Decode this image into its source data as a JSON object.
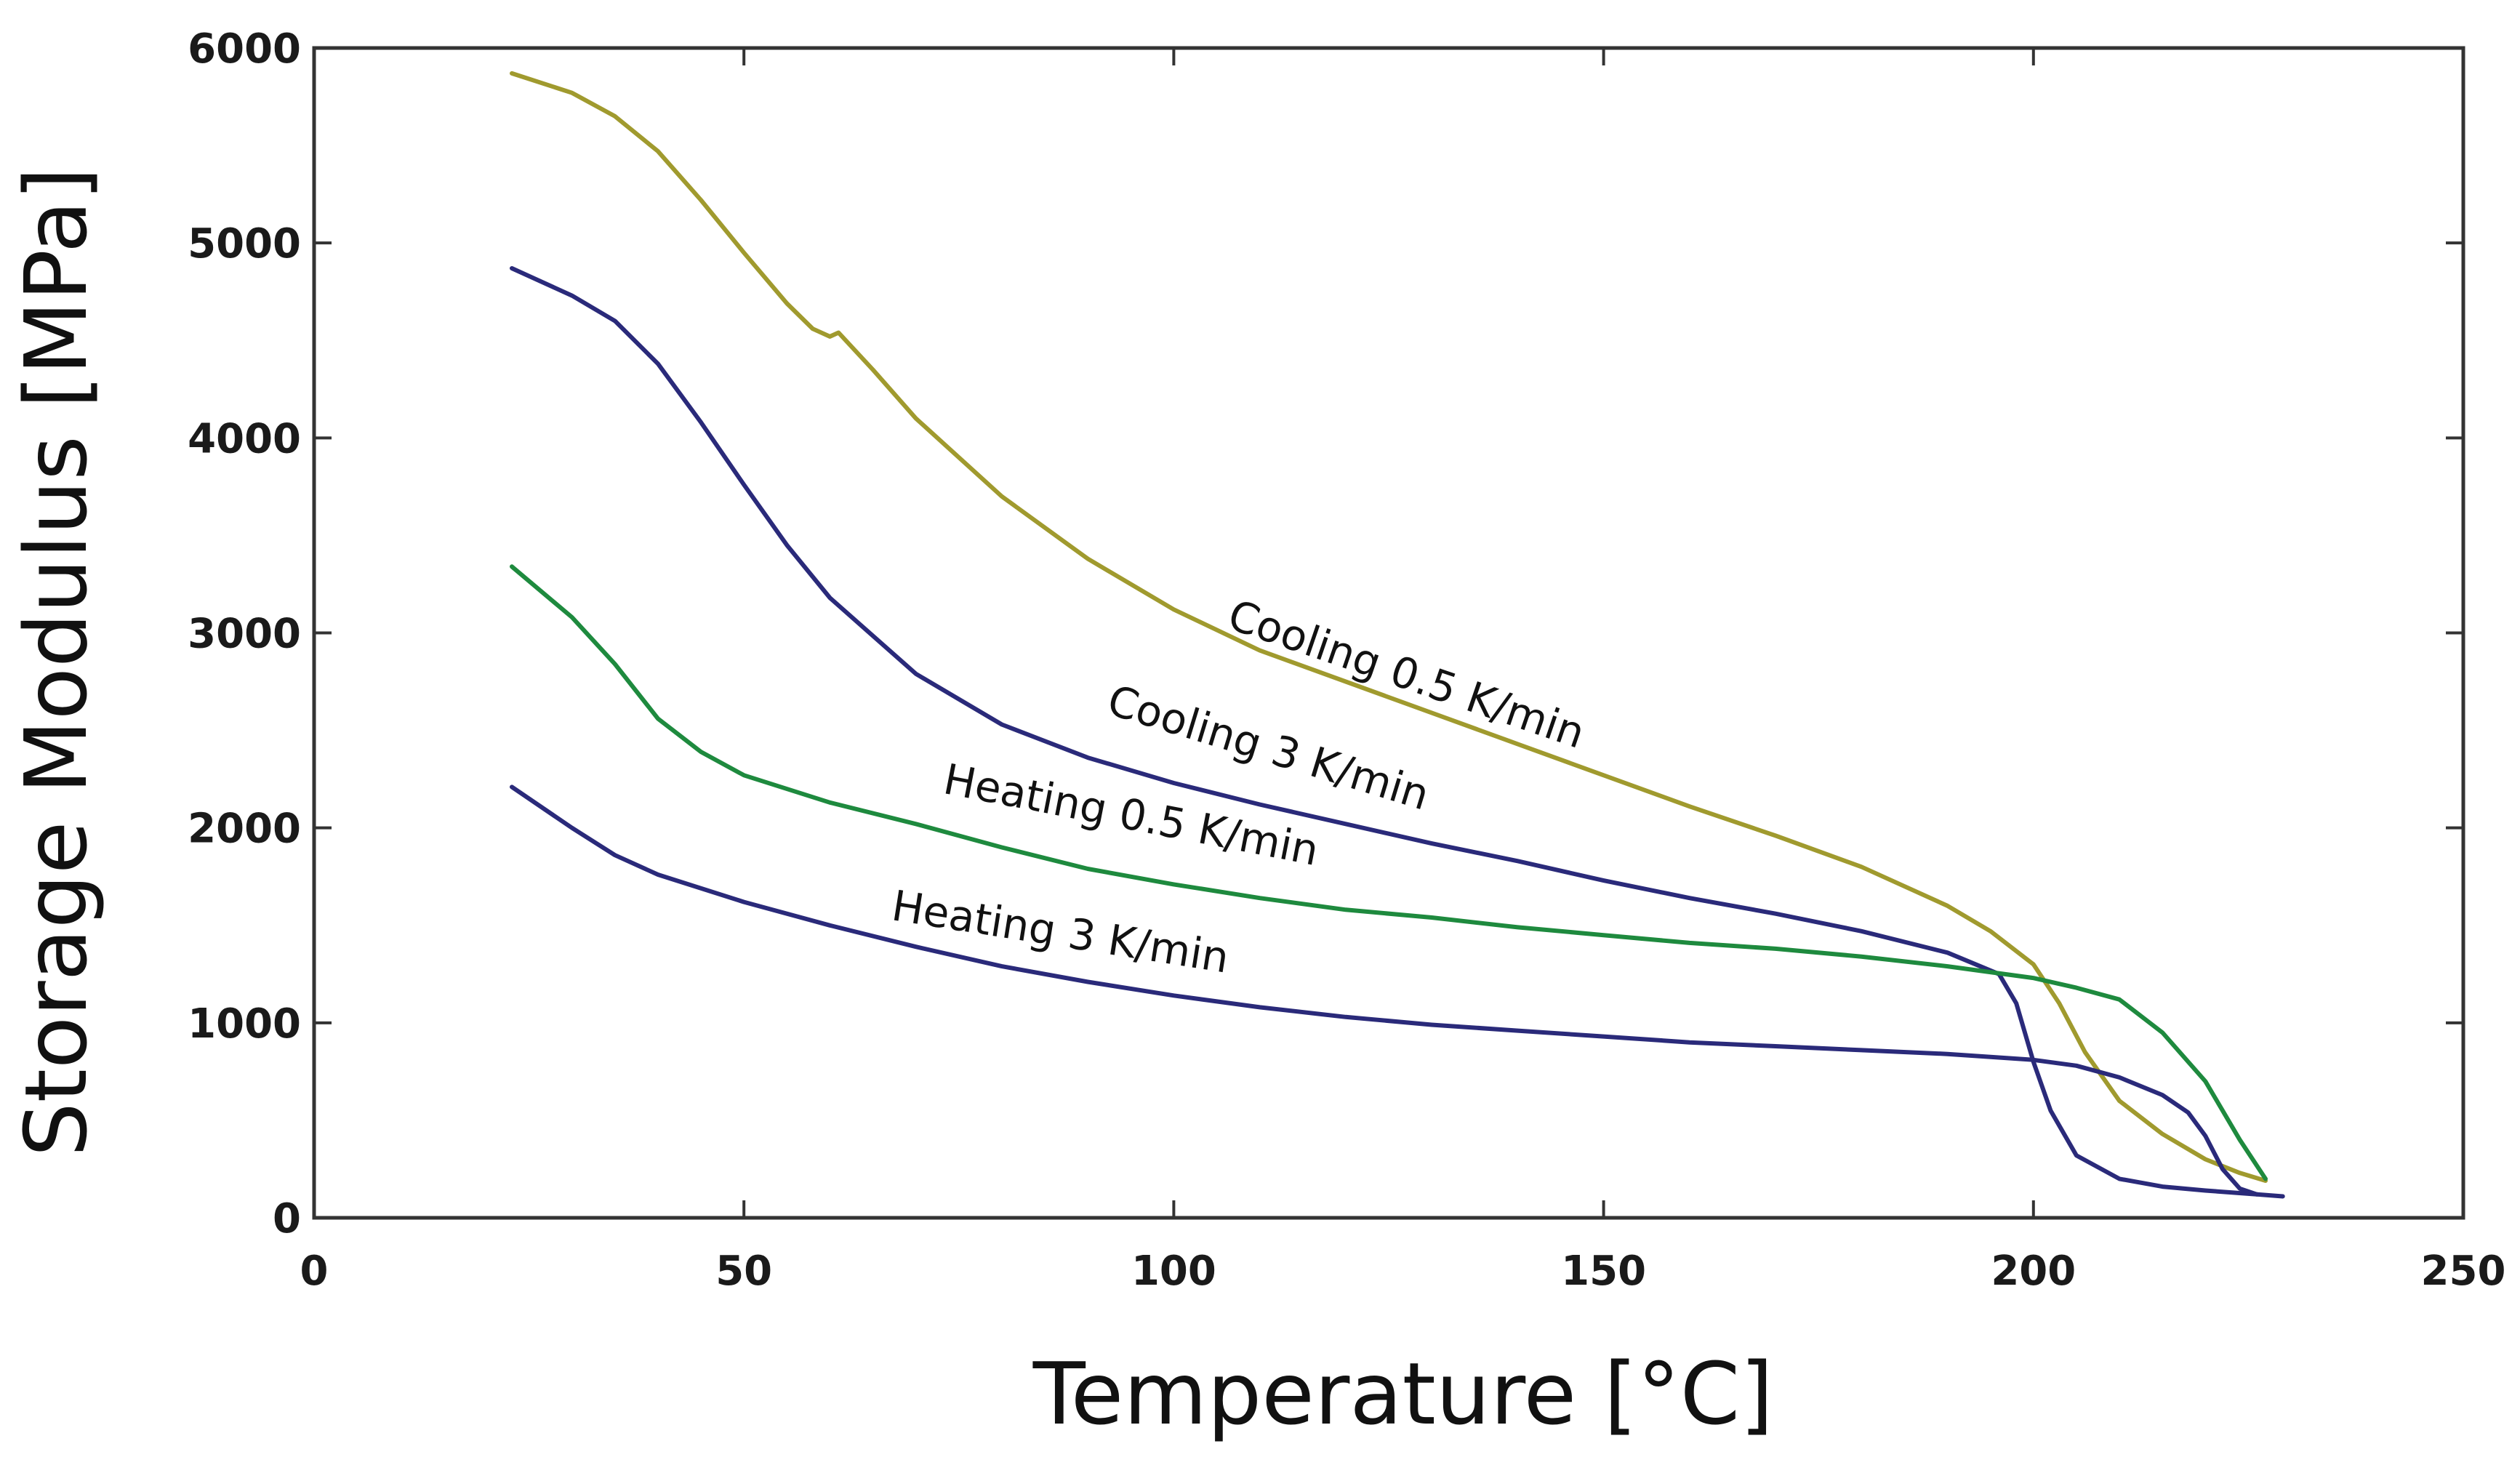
{
  "chart_data": {
    "type": "line",
    "title": "",
    "xlabel": "Temperature [°C]",
    "ylabel": "Storage Modulus [MPa]",
    "xlim": [
      0,
      250
    ],
    "ylim": [
      0,
      6000
    ],
    "grid": false,
    "x_ticks": [
      0,
      50,
      100,
      150,
      200,
      250
    ],
    "y_ticks": [
      0,
      1000,
      2000,
      3000,
      4000,
      5000,
      6000
    ],
    "series": [
      {
        "name": "Cooling 0.5 K/min",
        "color": "#a09a2e",
        "x": [
          23,
          30,
          35,
          40,
          45,
          50,
          55,
          58,
          60,
          61,
          65,
          70,
          80,
          90,
          100,
          110,
          120,
          130,
          140,
          150,
          160,
          170,
          180,
          190,
          195,
          200,
          203,
          206,
          210,
          215,
          220,
          224,
          227
        ],
        "y": [
          5870,
          5770,
          5650,
          5470,
          5220,
          4950,
          4690,
          4560,
          4520,
          4540,
          4350,
          4100,
          3700,
          3380,
          3120,
          2910,
          2750,
          2590,
          2430,
          2270,
          2110,
          1960,
          1800,
          1600,
          1470,
          1300,
          1100,
          850,
          600,
          430,
          300,
          230,
          190
        ]
      },
      {
        "name": "Cooling 3 K/min",
        "color": "#2a2a7a",
        "x": [
          23,
          30,
          35,
          40,
          45,
          50,
          55,
          60,
          70,
          80,
          90,
          100,
          110,
          120,
          130,
          140,
          150,
          160,
          170,
          180,
          190,
          196,
          198,
          200,
          202,
          205,
          210,
          215,
          220,
          226
        ],
        "y": [
          4870,
          4730,
          4600,
          4380,
          4080,
          3760,
          3450,
          3180,
          2790,
          2530,
          2360,
          2230,
          2120,
          2020,
          1920,
          1830,
          1730,
          1640,
          1560,
          1470,
          1360,
          1250,
          1100,
          800,
          550,
          320,
          200,
          160,
          140,
          120
        ]
      },
      {
        "name": "Heating 0.5 K/min",
        "color": "#1e8a3e",
        "x": [
          23,
          30,
          35,
          40,
          45,
          50,
          60,
          70,
          80,
          90,
          100,
          110,
          120,
          130,
          140,
          150,
          160,
          170,
          180,
          190,
          200,
          205,
          210,
          215,
          220,
          224,
          227
        ],
        "y": [
          3340,
          3080,
          2840,
          2560,
          2390,
          2270,
          2130,
          2020,
          1900,
          1790,
          1710,
          1640,
          1580,
          1540,
          1490,
          1450,
          1410,
          1380,
          1340,
          1290,
          1230,
          1180,
          1120,
          950,
          700,
          400,
          200
        ]
      },
      {
        "name": "Heating 3 K/min",
        "color": "#2a2a7a",
        "x": [
          23,
          30,
          35,
          40,
          50,
          60,
          70,
          80,
          90,
          100,
          110,
          120,
          130,
          140,
          150,
          160,
          170,
          180,
          190,
          200,
          205,
          210,
          215,
          218,
          220,
          222,
          224,
          226,
          229
        ],
        "y": [
          2210,
          2000,
          1860,
          1760,
          1620,
          1500,
          1390,
          1290,
          1210,
          1140,
          1080,
          1030,
          990,
          960,
          930,
          900,
          880,
          860,
          840,
          810,
          780,
          720,
          630,
          540,
          420,
          250,
          150,
          120,
          110
        ]
      }
    ],
    "annotations": [
      {
        "text": "Cooling 0.5 K/min",
        "x": 106,
        "y": 3030,
        "angle": 19
      },
      {
        "text": "Cooling 3 K/min",
        "x": 92,
        "y": 2590,
        "angle": 17
      },
      {
        "text": "Heating 0.5 K/min",
        "x": 73,
        "y": 2180,
        "angle": 11
      },
      {
        "text": "Heating 3 K/min",
        "x": 67,
        "y": 1530,
        "angle": 9
      }
    ]
  }
}
